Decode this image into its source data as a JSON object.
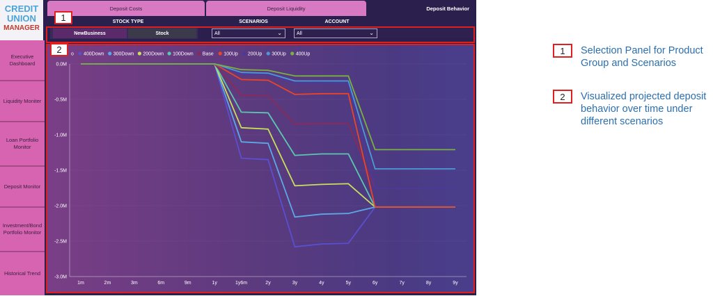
{
  "logo": {
    "line1": "CREDIT",
    "line2": "UNION",
    "line3": "MANAGER"
  },
  "sidebar": {
    "items": [
      {
        "label": "Executive Dashboard"
      },
      {
        "label": "Liquidity Moniter"
      },
      {
        "label": "Loan Portfolio Monitor"
      },
      {
        "label": "Deposit Monitor"
      },
      {
        "label": "Investment/Bond Portfolio Monitor"
      },
      {
        "label": "Historical Trend"
      }
    ]
  },
  "tabs": [
    {
      "label": "Deposit Costs",
      "active": false
    },
    {
      "label": "Deposit Liquidity",
      "active": false
    },
    {
      "label": "Deposit Behavior",
      "active": true
    }
  ],
  "panel": {
    "stock_type_label": "STOCK TYPE",
    "scenarios_label": "SCENARIOS",
    "account_label": "ACCOUNT",
    "stock_options": [
      "NewBusiness",
      "Stock"
    ],
    "scenarios_value": "All",
    "account_value": "All"
  },
  "annotations": {
    "badge1": "1",
    "badge2": "2"
  },
  "legend": {
    "items": [
      {
        "num": "1",
        "text": "Selection Panel for Product Group and Scenarios"
      },
      {
        "num": "2",
        "text": "Visualized projected deposit behavior over time under different scenarios"
      }
    ]
  },
  "chart_data": {
    "type": "line",
    "title": "",
    "xlabel": "",
    "ylabel": "",
    "legend_placement": "top-left",
    "legend_prefix": "o",
    "categories": [
      "1m",
      "2m",
      "3m",
      "6m",
      "9m",
      "1y",
      "1y6m",
      "2y",
      "3y",
      "4y",
      "5y",
      "6y",
      "7y",
      "8y",
      "9y"
    ],
    "yticks": [
      "0.0M",
      "-0.5M",
      "-1.0M",
      "-1.5M",
      "-2.0M",
      "-2.5M",
      "-3.0M"
    ],
    "ylim": [
      -3.0,
      0.0
    ],
    "grid": true,
    "series": [
      {
        "name": "400Down",
        "color": "#5a4fd0",
        "values": [
          0,
          0,
          0,
          0,
          0,
          0,
          -1.33,
          -1.35,
          -2.58,
          -2.54,
          -2.53,
          -2.02,
          -2.02,
          -2.02,
          -2.02
        ]
      },
      {
        "name": "300Down",
        "color": "#5aa8e8",
        "values": [
          0,
          0,
          0,
          0,
          0,
          0,
          -1.1,
          -1.12,
          -2.16,
          -2.12,
          -2.11,
          -2.02,
          -2.02,
          -2.02,
          -2.02
        ]
      },
      {
        "name": "200Down",
        "color": "#c8e05a",
        "values": [
          0,
          0,
          0,
          0,
          0,
          0,
          -0.9,
          -0.92,
          -1.72,
          -1.7,
          -1.69,
          -2.02,
          -2.02,
          -2.02,
          -2.02
        ]
      },
      {
        "name": "100Down",
        "color": "#5ac8b0",
        "values": [
          0,
          0,
          0,
          0,
          0,
          0,
          -0.68,
          -0.69,
          -1.29,
          -1.27,
          -1.27,
          -2.02,
          -2.02,
          -2.02,
          -2.02
        ]
      },
      {
        "name": "Base",
        "color": "#8a2a5a",
        "values": [
          0,
          0,
          0,
          0,
          0,
          0,
          -0.44,
          -0.45,
          -0.85,
          -0.84,
          -0.84,
          -1.76,
          -1.76,
          -1.76,
          -1.76
        ]
      },
      {
        "name": "100Up",
        "color": "#e8452a",
        "values": [
          0,
          0,
          0,
          0,
          0,
          0,
          -0.22,
          -0.23,
          -0.43,
          -0.42,
          -0.42,
          -2.02,
          -2.02,
          -2.02,
          -2.02
        ]
      },
      {
        "name": "200Up",
        "color": "#4a3aa0",
        "values": [
          0,
          0,
          0,
          0,
          0,
          0,
          -0.14,
          -0.15,
          -0.27,
          -0.27,
          -0.27,
          -1.76,
          -1.76,
          -1.76,
          -1.76
        ]
      },
      {
        "name": "300Up",
        "color": "#4a9ad8",
        "values": [
          0,
          0,
          0,
          0,
          0,
          0,
          -0.12,
          -0.13,
          -0.24,
          -0.24,
          -0.24,
          -1.48,
          -1.48,
          -1.48,
          -1.48
        ]
      },
      {
        "name": "400Up",
        "color": "#7ab040",
        "values": [
          0,
          0,
          0,
          0,
          0,
          0,
          -0.08,
          -0.09,
          -0.17,
          -0.17,
          -0.17,
          -1.21,
          -1.21,
          -1.21,
          -1.21
        ]
      }
    ]
  }
}
